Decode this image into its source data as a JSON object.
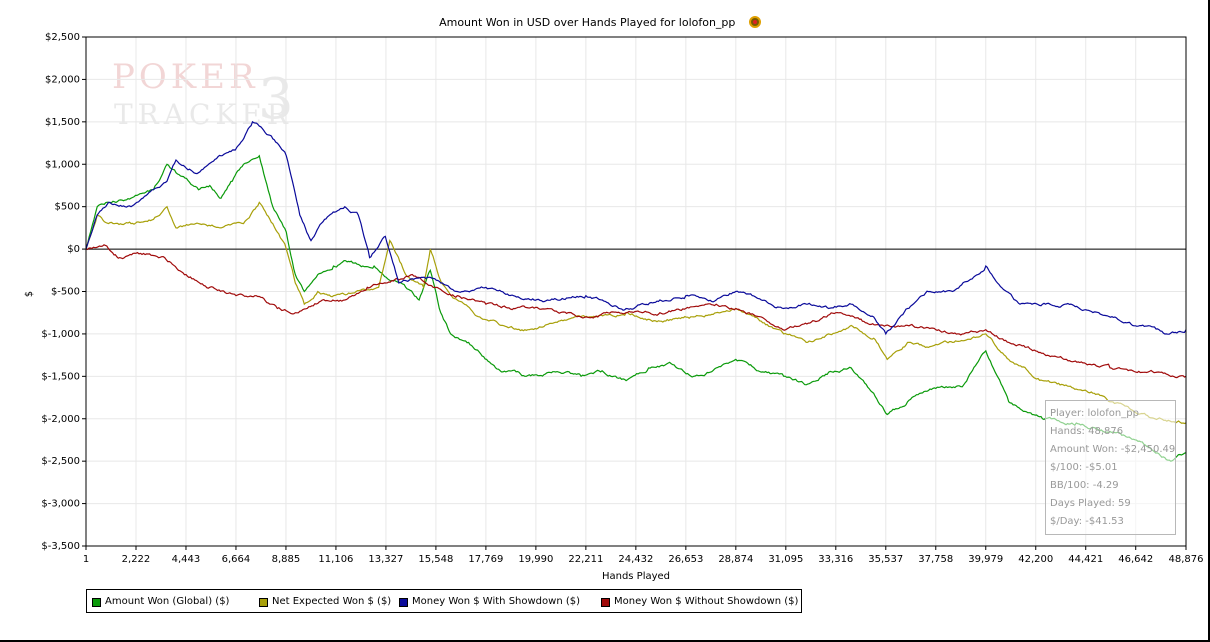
{
  "colors": {
    "amount_won": "#0a9a0a",
    "net_expected": "#a8a00a",
    "with_showdown": "#0a0a9a",
    "without_showdown": "#a00a0a",
    "grid": "#e8e8e8",
    "zero_line": "#000000"
  },
  "watermark": {
    "line1": "POKER",
    "line2": "TRACKER",
    "mark": "3"
  },
  "stats_box": {
    "player": "Player: lolofon_pp",
    "hands": "Hands: 48,876",
    "amount_won": "Amount Won: -$2,450.49",
    "per100": "$/100: -$5.01",
    "bb100": "BB/100: -4.29",
    "days": "Days Played: 59",
    "perday": "$/Day: -$41.53"
  },
  "chart_data": {
    "type": "line",
    "title": "Amount Won in USD over Hands Played for lolofon_pp",
    "xlabel": "Hands Played",
    "ylabel": "$",
    "xlim": [
      1,
      48876
    ],
    "ylim": [
      -3500,
      2500
    ],
    "x_ticks": [
      1,
      2222,
      4443,
      6664,
      8885,
      11106,
      13327,
      15548,
      17769,
      19990,
      22211,
      24432,
      26653,
      28874,
      31095,
      33316,
      35537,
      37758,
      39979,
      42200,
      44421,
      46642,
      48876
    ],
    "x_tick_labels": [
      "1",
      "2,222",
      "4,443",
      "6,664",
      "8,885",
      "11,106",
      "13,327",
      "15,548",
      "17,769",
      "19,990",
      "22,211",
      "24,432",
      "26,653",
      "28,874",
      "31,095",
      "33,316",
      "35,537",
      "37,758",
      "39,979",
      "42,200",
      "44,421",
      "46,642",
      "48,876"
    ],
    "y_ticks": [
      2500,
      2000,
      1500,
      1000,
      500,
      0,
      -500,
      -1000,
      -1500,
      -2000,
      -2500,
      -3000,
      -3500
    ],
    "y_tick_labels": [
      "$2,500",
      "$2,000",
      "$1,500",
      "$1,000",
      "$500",
      "$0",
      "$-500",
      "$-1,000",
      "$-1,500",
      "$-2,000",
      "$-2,500",
      "$-3,000",
      "$-3,500"
    ],
    "grid": true,
    "legend_position": "bottom-left",
    "series": [
      {
        "name": "Amount Won (Global) ($)",
        "color": "#0a9a0a",
        "x": [
          1,
          500,
          1000,
          2000,
          3000,
          3600,
          4000,
          5000,
          5500,
          6000,
          6500,
          7000,
          7700,
          8300,
          8900,
          9300,
          9700,
          10300,
          11000,
          11600,
          12300,
          12800,
          13400,
          14000,
          14800,
          15300,
          15700,
          16200,
          17000,
          17800,
          18200,
          19500,
          21000,
          22000,
          23000,
          24000,
          25000,
          26000,
          27000,
          28000,
          28874,
          30000,
          31000,
          32000,
          33000,
          34000,
          35000,
          35600,
          36500,
          37500,
          39000,
          39979,
          41000,
          42500,
          44000,
          45500,
          47000,
          48200,
          48876
        ],
        "y": [
          0,
          500,
          550,
          600,
          700,
          1000,
          900,
          700,
          750,
          600,
          800,
          1000,
          1100,
          500,
          200,
          -300,
          -500,
          -300,
          -200,
          -150,
          -200,
          -200,
          -350,
          -400,
          -600,
          -250,
          -700,
          -1000,
          -1100,
          -1300,
          -1400,
          -1500,
          -1450,
          -1500,
          -1450,
          -1550,
          -1400,
          -1350,
          -1500,
          -1400,
          -1300,
          -1450,
          -1500,
          -1600,
          -1450,
          -1400,
          -1700,
          -1950,
          -1800,
          -1650,
          -1600,
          -1200,
          -1800,
          -2000,
          -2050,
          -2150,
          -2300,
          -2500,
          -2400
        ]
      },
      {
        "name": "Net Expected Won $ ($)",
        "color": "#a8a00a",
        "x": [
          1,
          500,
          1000,
          2000,
          3000,
          3600,
          4000,
          5000,
          6000,
          7000,
          7700,
          8300,
          8900,
          9300,
          9700,
          10300,
          11000,
          12000,
          13000,
          13500,
          14200,
          15000,
          15300,
          15800,
          16500,
          17500,
          18500,
          19500,
          21000,
          22500,
          24000,
          25500,
          27000,
          28000,
          28874,
          30000,
          31000,
          32000,
          33000,
          34000,
          35000,
          35600,
          36500,
          37500,
          38500,
          39979,
          41000,
          42500,
          44000,
          44800,
          45500,
          46500,
          47500,
          48876
        ],
        "y": [
          0,
          400,
          300,
          300,
          350,
          500,
          250,
          300,
          250,
          300,
          550,
          300,
          0,
          -400,
          -650,
          -500,
          -550,
          -500,
          -450,
          100,
          -300,
          -450,
          0,
          -400,
          -600,
          -800,
          -900,
          -950,
          -850,
          -800,
          -750,
          -850,
          -800,
          -750,
          -700,
          -850,
          -1000,
          -1100,
          -1000,
          -900,
          -1050,
          -1300,
          -1100,
          -1150,
          -1100,
          -1000,
          -1300,
          -1550,
          -1650,
          -1700,
          -1800,
          -1900,
          -2000,
          -2050
        ]
      },
      {
        "name": "Money Won $ With Showdown ($)",
        "color": "#0a0a9a",
        "x": [
          1,
          500,
          1000,
          2000,
          3000,
          3600,
          4000,
          5000,
          6000,
          6700,
          7400,
          7700,
          8300,
          8900,
          9500,
          10000,
          10600,
          11500,
          12100,
          12600,
          13300,
          13900,
          14500,
          15500,
          16500,
          17769,
          19000,
          20500,
          22211,
          24000,
          25500,
          26653,
          28000,
          28874,
          30000,
          31000,
          32000,
          33000,
          34000,
          35000,
          35537,
          36500,
          37500,
          38500,
          39979,
          40500,
          41500,
          42500,
          43500,
          45000,
          46500,
          48000,
          48876
        ],
        "y": [
          0,
          400,
          550,
          500,
          700,
          800,
          1050,
          900,
          1100,
          1200,
          1500,
          1450,
          1300,
          1100,
          400,
          100,
          350,
          500,
          400,
          -100,
          150,
          -400,
          -350,
          -350,
          -500,
          -450,
          -550,
          -600,
          -550,
          -700,
          -600,
          -550,
          -600,
          -500,
          -600,
          -700,
          -650,
          -700,
          -650,
          -800,
          -1000,
          -700,
          -500,
          -500,
          -200,
          -400,
          -650,
          -650,
          -650,
          -750,
          -900,
          -1000,
          -950
        ]
      },
      {
        "name": "Money Won $ Without Showdown ($)",
        "color": "#a00a0a",
        "x": [
          1,
          800,
          1500,
          2222,
          3500,
          4443,
          5500,
          6664,
          7500,
          8500,
          9300,
          10500,
          11500,
          12500,
          13327,
          14500,
          15548,
          16500,
          17769,
          19000,
          20500,
          22211,
          24000,
          25500,
          26653,
          28000,
          28874,
          30000,
          31095,
          32500,
          33316,
          34500,
          35537,
          36500,
          37758,
          39000,
          39979,
          41000,
          42200,
          43500,
          44421,
          45500,
          46642,
          47800,
          48876
        ],
        "y": [
          0,
          50,
          -100,
          -50,
          -100,
          -300,
          -450,
          -550,
          -550,
          -700,
          -750,
          -600,
          -600,
          -450,
          -400,
          -300,
          -450,
          -550,
          -650,
          -700,
          -700,
          -800,
          -750,
          -750,
          -700,
          -650,
          -700,
          -800,
          -950,
          -850,
          -750,
          -850,
          -900,
          -900,
          -950,
          -1000,
          -950,
          -1100,
          -1200,
          -1300,
          -1350,
          -1400,
          -1450,
          -1450,
          -1500
        ]
      }
    ]
  }
}
